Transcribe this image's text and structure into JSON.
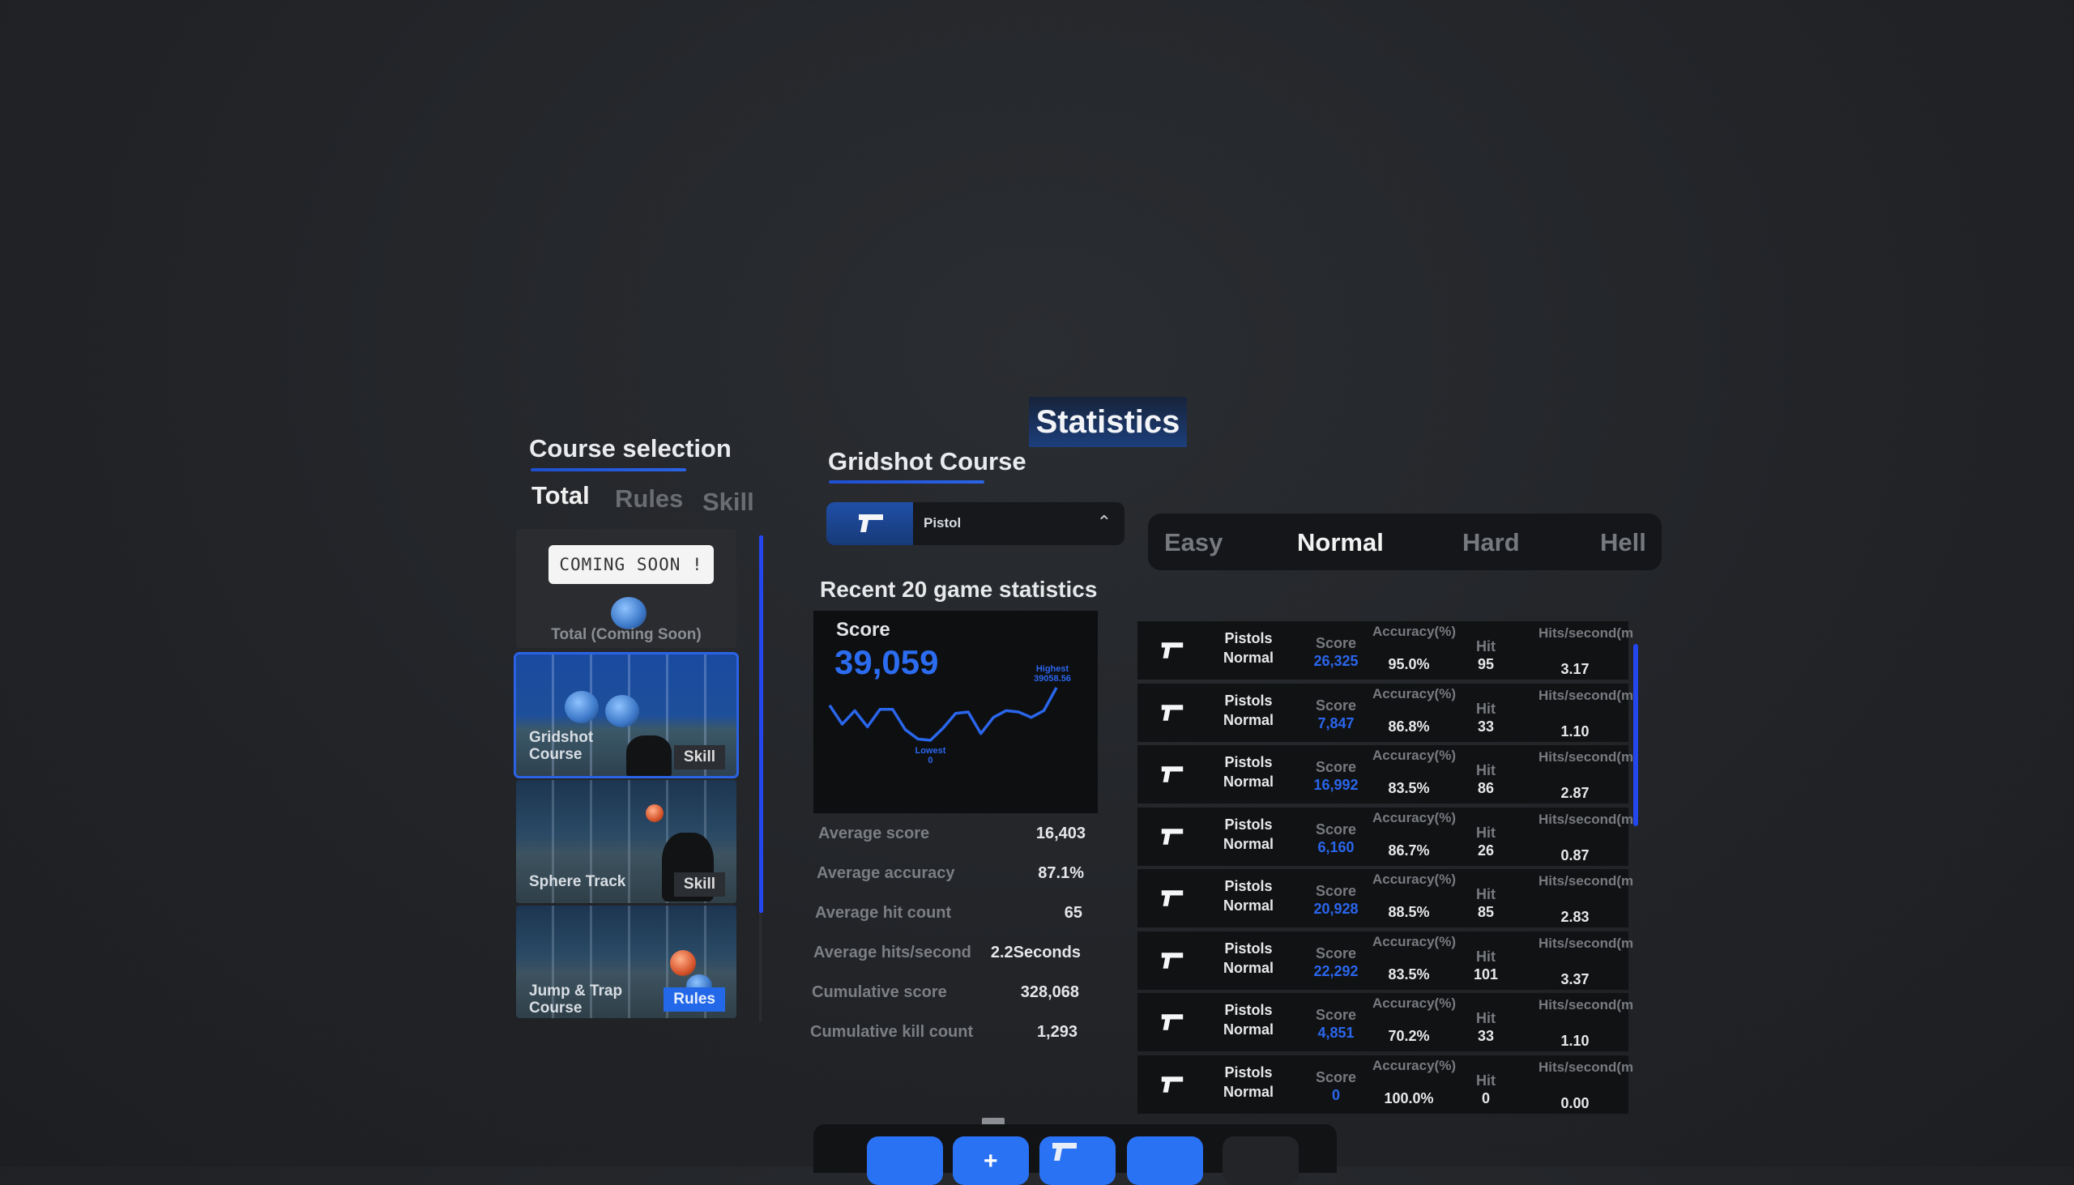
{
  "title": "Statistics",
  "course_selection": {
    "heading": "Course selection",
    "tabs": [
      {
        "label": "Total",
        "active": true
      },
      {
        "label": "Rules",
        "active": false
      },
      {
        "label": "Skill",
        "active": false
      }
    ],
    "courses": [
      {
        "name": "Total (Coming Soon)",
        "bubble": "COMING SOON !",
        "tag": ""
      },
      {
        "name": "Gridshot Course",
        "tag": "Skill",
        "selected": true
      },
      {
        "name": "Sphere Track",
        "tag": "Skill"
      },
      {
        "name": "Jump & Trap Course",
        "tag": "Rules"
      }
    ]
  },
  "course_detail": {
    "heading": "Gridshot Course",
    "weapon_dropdown": {
      "icon": "pistol-icon",
      "value": "Pistol",
      "chevron": "chevron-up-icon"
    },
    "difficulties": [
      {
        "label": "Easy",
        "active": false
      },
      {
        "label": "Normal",
        "active": true
      },
      {
        "label": "Hard",
        "active": false
      },
      {
        "label": "Hell",
        "active": false
      }
    ],
    "recent_title": "Recent 20 game statistics",
    "score_card": {
      "label": "Score",
      "value": "39,059"
    },
    "summary": [
      {
        "label": "Average score",
        "value": "16,403"
      },
      {
        "label": "Average accuracy",
        "value": "87.1%"
      },
      {
        "label": "Average hit count",
        "value": "65"
      },
      {
        "label": "Average hits/second",
        "value": "2.2Seconds"
      },
      {
        "label": "Cumulative score",
        "value": "328,068"
      },
      {
        "label": "Cumulative kill count",
        "value": "1,293"
      }
    ],
    "table_headers": {
      "score": "Score",
      "accuracy": "Accuracy(%)",
      "hit": "Hit",
      "hits_per_second": "Hits/second(ms)"
    },
    "rows": [
      {
        "weapon": "Pistols",
        "difficulty": "Normal",
        "score": "26,325",
        "accuracy": "95.0%",
        "hit": "95",
        "hps": "3.17"
      },
      {
        "weapon": "Pistols",
        "difficulty": "Normal",
        "score": "7,847",
        "accuracy": "86.8%",
        "hit": "33",
        "hps": "1.10"
      },
      {
        "weapon": "Pistols",
        "difficulty": "Normal",
        "score": "16,992",
        "accuracy": "83.5%",
        "hit": "86",
        "hps": "2.87"
      },
      {
        "weapon": "Pistols",
        "difficulty": "Normal",
        "score": "6,160",
        "accuracy": "86.7%",
        "hit": "26",
        "hps": "0.87"
      },
      {
        "weapon": "Pistols",
        "difficulty": "Normal",
        "score": "20,928",
        "accuracy": "88.5%",
        "hit": "85",
        "hps": "2.83"
      },
      {
        "weapon": "Pistols",
        "difficulty": "Normal",
        "score": "22,292",
        "accuracy": "83.5%",
        "hit": "101",
        "hps": "3.37"
      },
      {
        "weapon": "Pistols",
        "difficulty": "Normal",
        "score": "4,851",
        "accuracy": "70.2%",
        "hit": "33",
        "hps": "1.10"
      },
      {
        "weapon": "Pistols",
        "difficulty": "Normal",
        "score": "0",
        "accuracy": "100.0%",
        "hit": "0",
        "hps": "0.00"
      }
    ]
  },
  "chart_data": {
    "type": "line",
    "series": [
      {
        "values": [
          26000,
          12000,
          22000,
          10000,
          23000,
          23000,
          8000,
          1000,
          0,
          9000,
          20000,
          21000,
          5000,
          17000,
          22000,
          21000,
          17000,
          22000,
          39058.56
        ]
      }
    ],
    "annotations": [
      {
        "label": "Highest",
        "value": "39058.56"
      },
      {
        "label": "Lowest",
        "value": "0"
      }
    ],
    "line_color": "#2a66ec",
    "grid": false
  },
  "dock": {
    "buttons": [
      "menu-button",
      "add-button",
      "pistol-button",
      "blue-button",
      "dark-button"
    ]
  },
  "colors": {
    "accent": "#2b6cf0",
    "panel": "#111214",
    "background": "#222428"
  }
}
